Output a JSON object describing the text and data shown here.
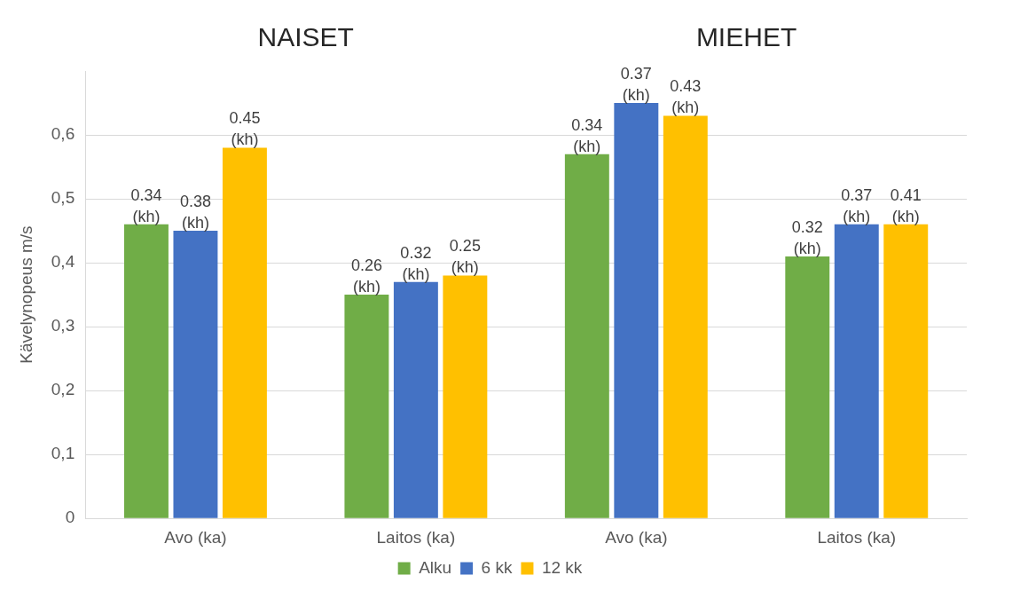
{
  "chart_data": {
    "type": "bar",
    "ylabel": "Kävelynopeus m/s",
    "categories": [
      "Avo (ka)",
      "Laitos (ka)",
      "Avo (ka)",
      "Laitos (ka)"
    ],
    "series": [
      {
        "name": "Alku",
        "color": "#70ad47",
        "values": [
          0.46,
          0.35,
          0.57,
          0.41
        ]
      },
      {
        "name": "6 kk",
        "color": "#4472c4",
        "values": [
          0.45,
          0.37,
          0.65,
          0.46
        ]
      },
      {
        "name": "12 kk",
        "color": "#ffc000",
        "values": [
          0.58,
          0.38,
          0.63,
          0.46
        ]
      }
    ],
    "annotations": [
      "NAISET",
      "MIEHET",
      "0.34 (kh)",
      "0.38 (kh)",
      "0.45 (kh)",
      "0.26 (kh)",
      "0.32 (kh)",
      "0.25 (kh)",
      "0.34 (kh)",
      "0.37 (kh)",
      "0.43 (kh)",
      "0.32 (kh)",
      "0.37 (kh)",
      "0.41 (kh)"
    ],
    "ylim": [
      0,
      0.7
    ],
    "yticks": [
      {
        "value": 0,
        "label": "0"
      },
      {
        "value": 0.1,
        "label": "0,1"
      },
      {
        "value": 0.2,
        "label": "0,2"
      },
      {
        "value": 0.3,
        "label": "0,3"
      },
      {
        "value": 0.4,
        "label": "0,4"
      },
      {
        "value": 0.5,
        "label": "0,5"
      },
      {
        "value": 0.6,
        "label": "0,6"
      }
    ],
    "grid": "y",
    "legend": "bottom"
  }
}
